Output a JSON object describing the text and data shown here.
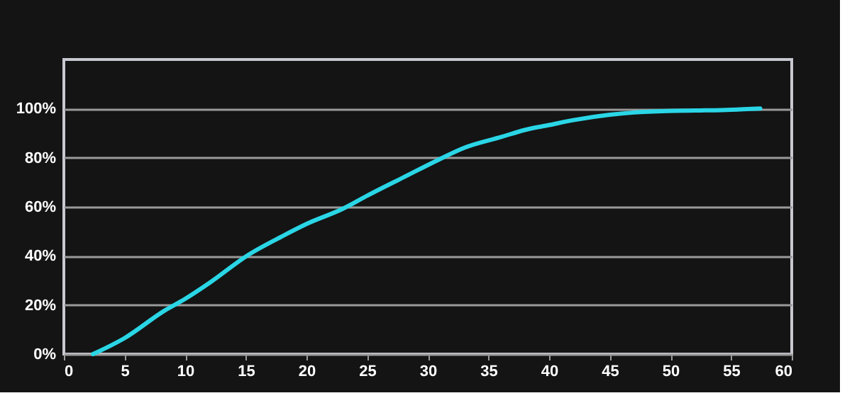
{
  "chart_data": {
    "type": "line",
    "x": [
      2.4,
      5,
      8.3,
      10,
      12,
      15.2,
      18,
      20,
      23,
      25,
      28,
      30.9,
      33,
      36.1,
      38,
      40,
      42,
      45,
      47,
      49.8,
      52,
      55,
      57.4
    ],
    "series": [
      {
        "color": "#2ad6e6",
        "values": [
          0,
          6.5,
          17.7,
          22.5,
          29,
          40.4,
          48,
          53,
          59.2,
          64.5,
          72,
          79.2,
          84,
          88.5,
          91.3,
          93.3,
          95.3,
          97.5,
          98.4,
          99,
          99.2,
          99.5,
          100
        ]
      }
    ],
    "xlim": [
      0,
      60
    ],
    "xticks": [
      0,
      5,
      10,
      15,
      20,
      25,
      30,
      35,
      40,
      45,
      50,
      55,
      60
    ],
    "ylim": [
      0,
      120
    ],
    "yticks": [
      {
        "value": 0,
        "label": "0%"
      },
      {
        "value": 20,
        "label": "20%"
      },
      {
        "value": 40,
        "label": "40%"
      },
      {
        "value": 60,
        "label": "60%"
      },
      {
        "value": 80,
        "label": "80%"
      },
      {
        "value": 100,
        "label": "100%"
      }
    ],
    "grid": "y",
    "marker": "none",
    "line_style": "solid"
  }
}
